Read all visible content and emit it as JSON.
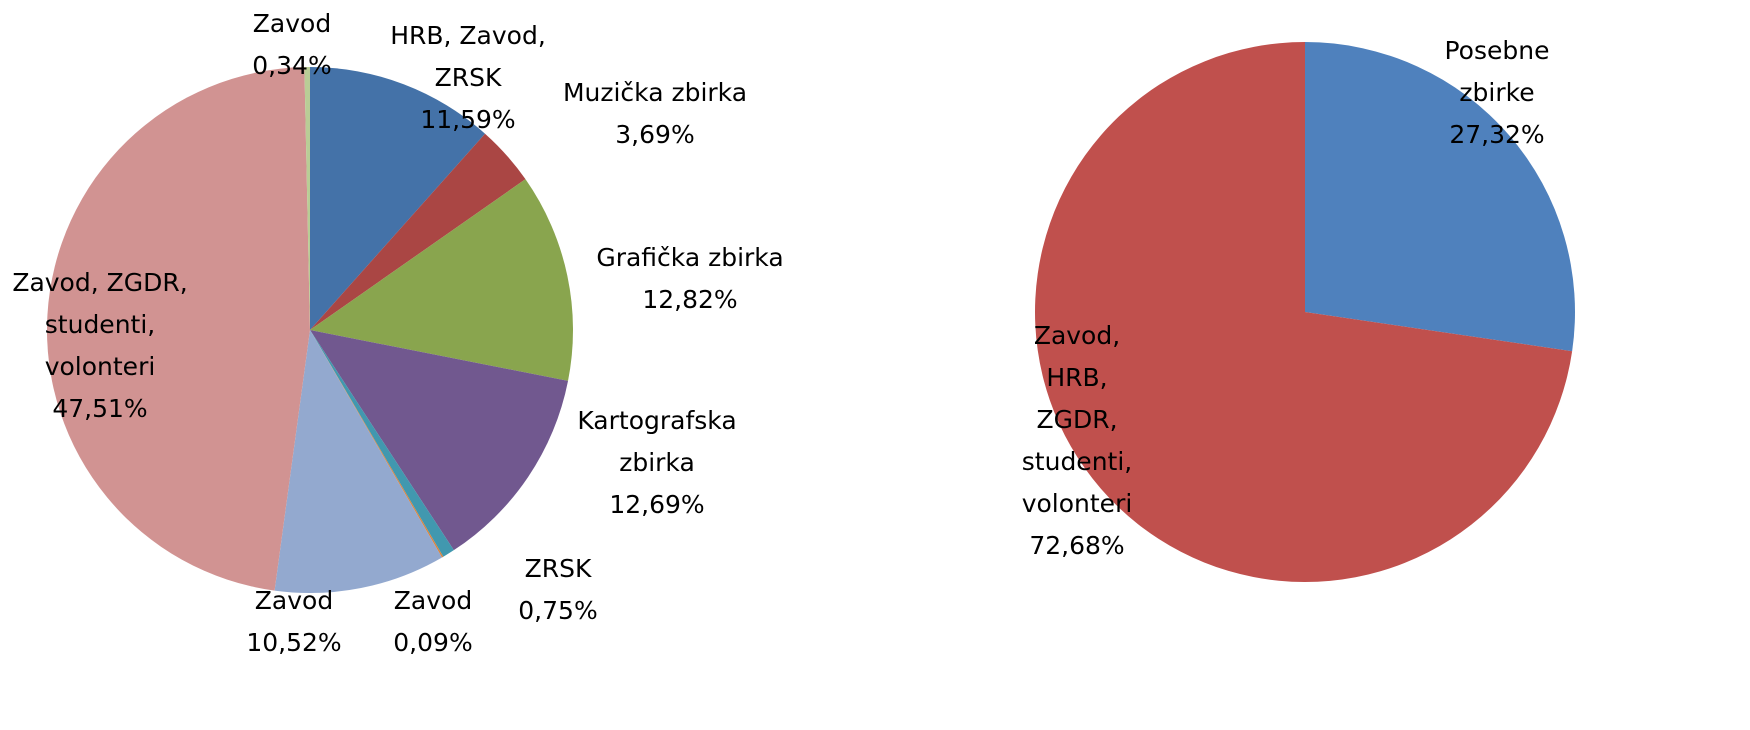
{
  "chart_data": [
    {
      "type": "pie",
      "categories": [
        "HRB, Zavod, ZRSK",
        "Muzička zbirka",
        "Grafička zbirka",
        "Kartografska zbirka",
        "ZRSK",
        "Zavod",
        "Zavod",
        "Zavod, ZGDR, studenti, volonteri",
        "Zavod"
      ],
      "values": [
        11.59,
        3.69,
        12.82,
        12.69,
        0.75,
        0.09,
        10.52,
        47.51,
        0.34
      ],
      "value_labels": [
        "11,59%",
        "3,69%",
        "12,82%",
        "12,69%",
        "0,75%",
        "0,09%",
        "10,52%",
        "47,51%",
        "0,34%"
      ],
      "colors": [
        "#4472a8",
        "#aa4644",
        "#89a54e",
        "#71588f",
        "#4198af",
        "#db843d",
        "#93a9cf",
        "#d19392",
        "#b9cd96"
      ]
    },
    {
      "type": "pie",
      "categories": [
        "Posebne zbirke",
        "Zavod, HRB, ZGDR, studenti, volonteri"
      ],
      "values": [
        27.32,
        72.68
      ],
      "value_labels": [
        "27,32%",
        "72,68%"
      ],
      "colors": [
        "#4f81bd",
        "#c0504d"
      ]
    }
  ]
}
